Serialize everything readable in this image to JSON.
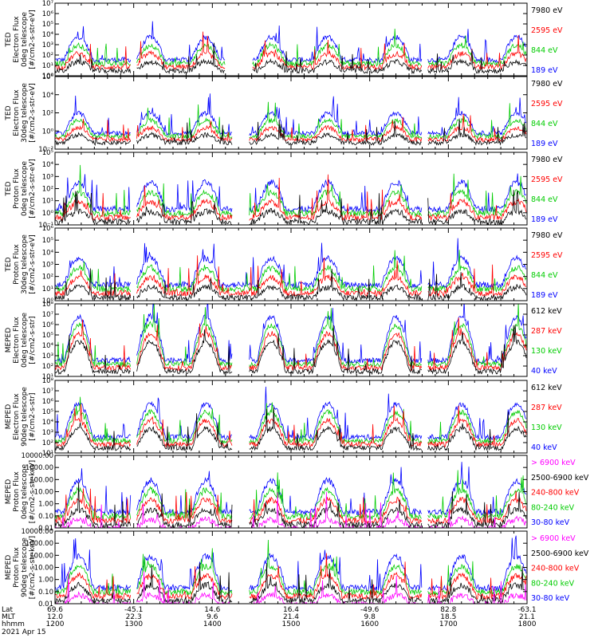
{
  "chart_data": [
    {
      "type": "line",
      "ylabel": [
        "TED",
        "Electron Flux",
        "0deg telescope",
        "[#/cm2-s-str-eV]"
      ],
      "ylim_exp": [
        0,
        7
      ],
      "ytick_labels": [
        "10⁰",
        "10¹",
        "10²",
        "10³",
        "10⁴",
        "10⁵",
        "10⁶",
        "10⁷"
      ],
      "legend": [
        {
          "label": "7980 eV",
          "color": "#000000"
        },
        {
          "label": "2595 eV",
          "color": "#ff0000"
        },
        {
          "label": "844 eV",
          "color": "#00cc00"
        },
        {
          "label": "189 eV",
          "color": "#0000ff"
        }
      ]
    },
    {
      "type": "line",
      "ylabel": [
        "TED",
        "Electron Flux",
        "30deg telescope",
        "[#/cm2-s-str-eV]"
      ],
      "ylim_exp": [
        -2,
        6
      ],
      "ytick_labels": [
        "10⁻²",
        "10⁰",
        "10²",
        "10⁴",
        "10⁶"
      ],
      "legend": [
        {
          "label": "7980 eV",
          "color": "#000000"
        },
        {
          "label": "2595 eV",
          "color": "#ff0000"
        },
        {
          "label": "844 eV",
          "color": "#00cc00"
        },
        {
          "label": "189 eV",
          "color": "#0000ff"
        }
      ]
    },
    {
      "type": "line",
      "ylabel": [
        "TED",
        "Proton Flux",
        "0deg telescope",
        "[#/cm2-s-str-eV]"
      ],
      "ylim_exp": [
        -1,
        5
      ],
      "ytick_labels": [
        "10⁻¹",
        "10⁰",
        "10¹",
        "10²",
        "10³",
        "10⁴",
        "10⁵"
      ],
      "legend": [
        {
          "label": "7980 eV",
          "color": "#000000"
        },
        {
          "label": "2595 eV",
          "color": "#ff0000"
        },
        {
          "label": "844 eV",
          "color": "#00cc00"
        },
        {
          "label": "189 eV",
          "color": "#0000ff"
        }
      ]
    },
    {
      "type": "line",
      "ylabel": [
        "TED",
        "Proton Flux",
        "30deg telescope",
        "[#/cm2-s-str-eV]"
      ],
      "ylim_exp": [
        0,
        6
      ],
      "ytick_labels": [
        "10⁰",
        "10¹",
        "10²",
        "10³",
        "10⁴",
        "10⁵",
        "10⁶"
      ],
      "legend": [
        {
          "label": "7980 eV",
          "color": "#000000"
        },
        {
          "label": "2595 eV",
          "color": "#ff0000"
        },
        {
          "label": "844 eV",
          "color": "#00cc00"
        },
        {
          "label": "189 eV",
          "color": "#0000ff"
        }
      ]
    },
    {
      "type": "line",
      "ylabel": [
        "MEPED",
        "Electron Flux",
        "0deg telescope",
        "[#/cm2-s-str]"
      ],
      "ylim_exp": [
        1,
        8
      ],
      "ytick_labels": [
        "10¹",
        "10²",
        "10³",
        "10⁴",
        "10⁵",
        "10⁶",
        "10⁷",
        "10⁸"
      ],
      "legend": [
        {
          "label": "612 keV",
          "color": "#000000"
        },
        {
          "label": "287 keV",
          "color": "#ff0000"
        },
        {
          "label": "130 keV",
          "color": "#00cc00"
        },
        {
          "label": "40 keV",
          "color": "#0000ff"
        }
      ]
    },
    {
      "type": "line",
      "ylabel": [
        "MEPED",
        "Electron Flux",
        "90deg telescope",
        "[#/cm2-s-str]"
      ],
      "ylim_exp": [
        1,
        8
      ],
      "ytick_labels": [
        "10¹",
        "10²",
        "10³",
        "10⁴",
        "10⁵",
        "10⁶",
        "10⁷",
        "10⁸"
      ],
      "legend": [
        {
          "label": "612 keV",
          "color": "#000000"
        },
        {
          "label": "287 keV",
          "color": "#ff0000"
        },
        {
          "label": "130 keV",
          "color": "#00cc00"
        },
        {
          "label": "40 keV",
          "color": "#0000ff"
        }
      ]
    },
    {
      "type": "line",
      "ylabel": [
        "MEPED",
        "Proton Flux",
        "0deg telescope",
        "[#/cm2-s-str-keV]"
      ],
      "ylim_exp": [
        -2,
        4
      ],
      "ytick_labels": [
        "0.01",
        "0.10",
        "1.00",
        "10.00",
        "100.00",
        "1000.00",
        "10000.00"
      ],
      "legend": [
        {
          "label": "> 6900 keV",
          "color": "#ff00ff"
        },
        {
          "label": "2500-6900 keV",
          "color": "#000000"
        },
        {
          "label": "240-800 keV",
          "color": "#ff0000"
        },
        {
          "label": "80-240 keV",
          "color": "#00cc00"
        },
        {
          "label": "30-80 keV",
          "color": "#0000ff"
        }
      ]
    },
    {
      "type": "line",
      "ylabel": [
        "MEPED",
        "Proton Flux",
        "90deg telescope",
        "[#/cm2-s-str-keV]"
      ],
      "ylim_exp": [
        -2,
        4
      ],
      "ytick_labels": [
        "0.01",
        "0.10",
        "1.00",
        "10.00",
        "100.00",
        "1000.00",
        "10000.00"
      ],
      "legend": [
        {
          "label": "> 6900 keV",
          "color": "#ff00ff"
        },
        {
          "label": "2500-6900 keV",
          "color": "#000000"
        },
        {
          "label": "240-800 keV",
          "color": "#ff0000"
        },
        {
          "label": "80-240 keV",
          "color": "#00cc00"
        },
        {
          "label": "30-80 keV",
          "color": "#0000ff"
        }
      ]
    }
  ],
  "x_axis": {
    "time_range_hhmm": [
      "1200",
      "1800"
    ],
    "row_labels": [
      "Lat",
      "MLT",
      "hhmm"
    ],
    "ticks": [
      {
        "hhmm": "1200",
        "lat": "69.6",
        "mlt": "12.0"
      },
      {
        "hhmm": "1300",
        "lat": "-45.1",
        "mlt": "22.3"
      },
      {
        "hhmm": "1400",
        "lat": "14.6",
        "mlt": "9.6"
      },
      {
        "hhmm": "1500",
        "lat": "16.4",
        "mlt": "21.4"
      },
      {
        "hhmm": "1600",
        "lat": "-49.6",
        "mlt": "9.8"
      },
      {
        "hhmm": "1700",
        "lat": "82.8",
        "mlt": "18.5"
      },
      {
        "hhmm": "1800",
        "lat": "-63.1",
        "mlt": "21.1"
      }
    ],
    "date": "2021 Apr 15"
  }
}
